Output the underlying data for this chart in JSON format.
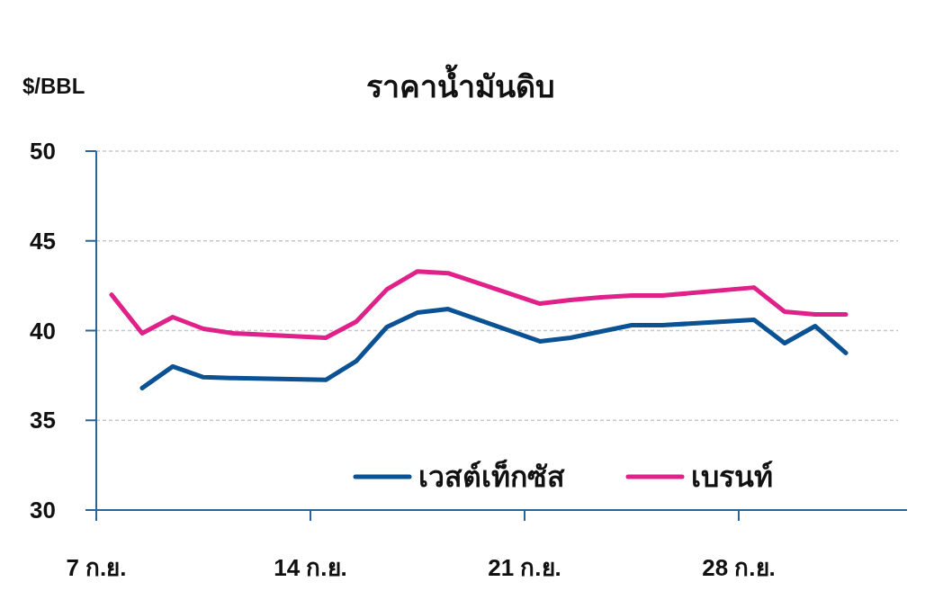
{
  "chart_data": {
    "type": "line",
    "title": "ราคาน้ำมันดิบ",
    "ylabel": "$/BBL",
    "xlim": [
      7,
      33.5
    ],
    "xticks": [
      {
        "value": 7,
        "label": "7 ก.ย."
      },
      {
        "value": 14,
        "label": "14 ก.ย."
      },
      {
        "value": 21,
        "label": "21 ก.ย."
      },
      {
        "value": 28,
        "label": "28 ก.ย."
      }
    ],
    "ylim": [
      30,
      50
    ],
    "yticks": [
      30,
      35,
      40,
      45,
      50
    ],
    "grid": "y",
    "legend": "bottom right",
    "series": [
      {
        "name": "เวสต์เท็กซัส",
        "color": "#0a5294",
        "x": [
          8.5,
          9.5,
          10.5,
          11.5,
          14.5,
          15.5,
          16.5,
          17.5,
          18.5,
          21.5,
          22.5,
          23.5,
          24.5,
          25.5,
          28.5,
          29.5,
          30.5,
          31.5
        ],
        "values": [
          36.8,
          38.0,
          37.4,
          37.35,
          37.25,
          38.3,
          40.2,
          41.0,
          41.2,
          39.4,
          39.6,
          39.95,
          40.3,
          40.3,
          40.6,
          39.3,
          40.25,
          38.75
        ]
      },
      {
        "name": "เบรนท์",
        "color": "#e0218a",
        "x": [
          7.5,
          8.5,
          9.5,
          10.5,
          11.5,
          14.5,
          15.5,
          16.5,
          17.5,
          18.5,
          21.5,
          22.5,
          23.5,
          24.5,
          25.5,
          28.5,
          29.5,
          30.5,
          31.5
        ],
        "values": [
          42.0,
          39.85,
          40.75,
          40.1,
          39.85,
          39.6,
          40.5,
          42.3,
          43.3,
          43.2,
          41.5,
          41.7,
          41.85,
          41.95,
          41.95,
          42.4,
          41.05,
          40.9,
          40.9
        ]
      }
    ]
  }
}
